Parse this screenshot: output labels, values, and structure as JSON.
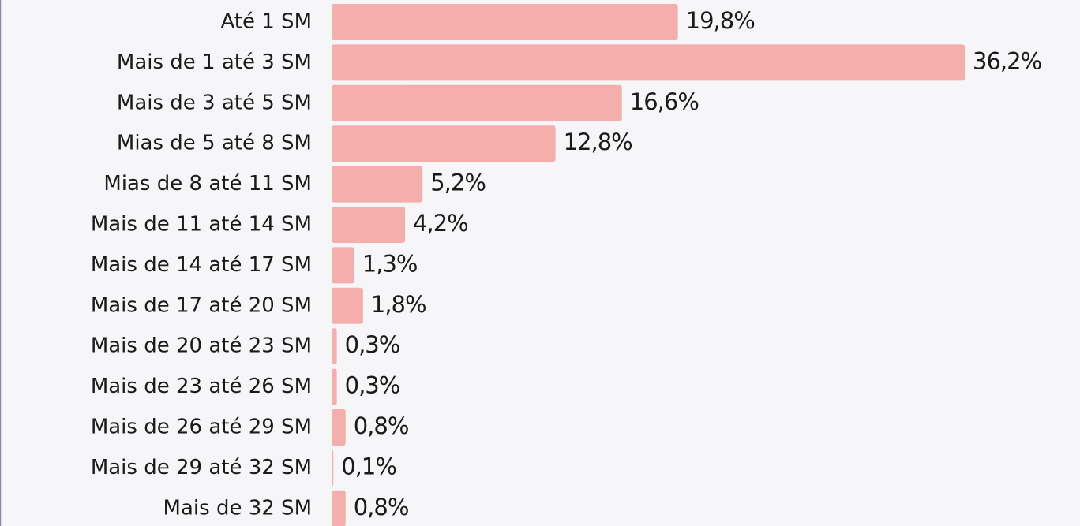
{
  "chart_data": {
    "type": "barh",
    "categories": [
      "Até 1 SM",
      "Mais de 1 até 3 SM",
      "Mais de 3 até 5 SM",
      "Mias de 5 até 8 SM",
      "Mias de 8 até 11 SM",
      "Mais de 11 até 14 SM",
      "Mais de 14 até 17 SM",
      "Mais de 17 até 20 SM",
      "Mais de 20 até 23 SM",
      "Mais de 23 até 26 SM",
      "Mais de 26 até 29 SM",
      "Mais de 29 até 32 SM",
      "Mais de 32 SM"
    ],
    "values": [
      19.8,
      36.2,
      16.6,
      12.8,
      5.2,
      4.2,
      1.3,
      1.8,
      0.3,
      0.3,
      0.8,
      0.1,
      0.8
    ],
    "value_labels": [
      "19,8%",
      "36,2%",
      "16,6%",
      "12,8%",
      "5,2%",
      "4,2%",
      "1,3%",
      "1,8%",
      "0,3%",
      "0,3%",
      "0,8%",
      "0,1%",
      "0,8%"
    ],
    "color": "#f4afad"
  }
}
